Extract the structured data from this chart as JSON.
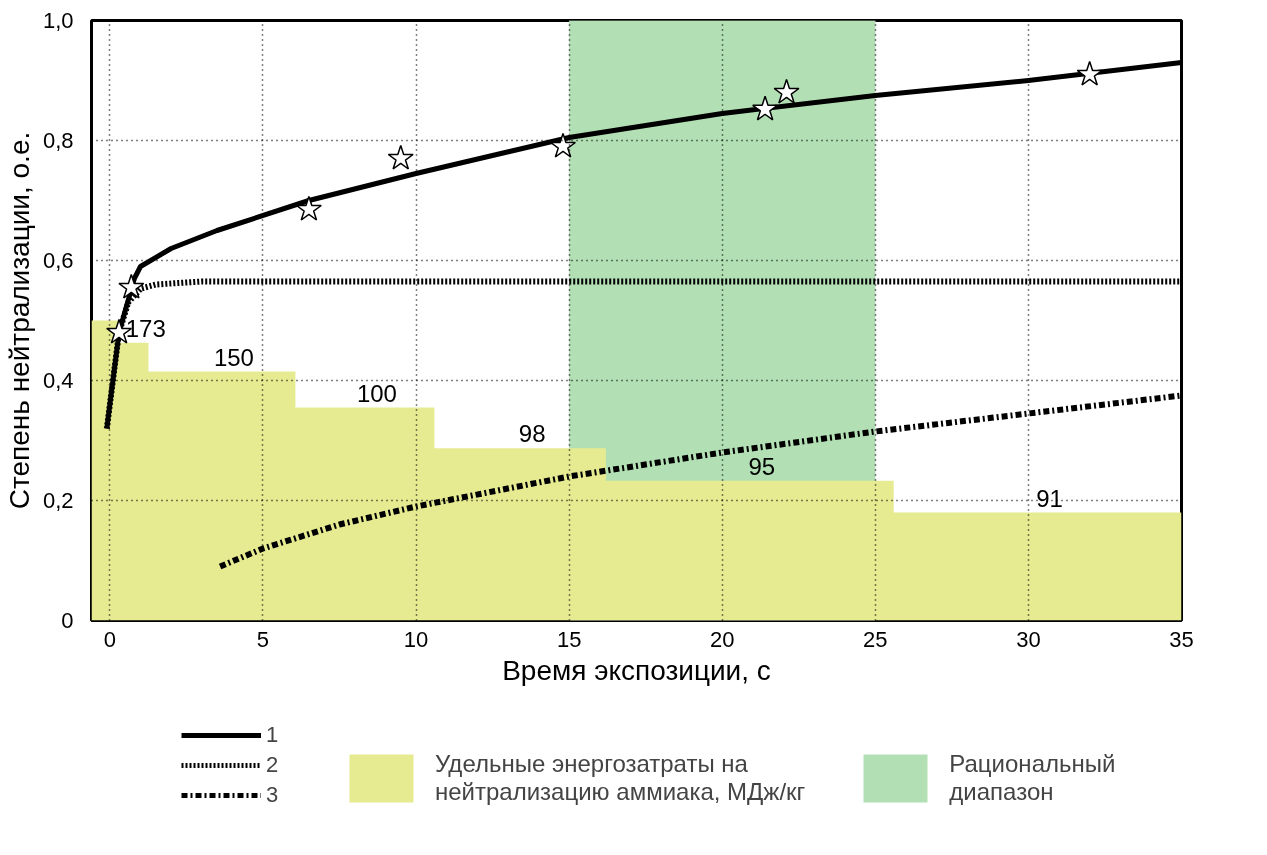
{
  "chart_data": {
    "type": "line",
    "xlabel": "Время экспозиции, с",
    "ylabel": "Степень нейтрализации, о.е.",
    "xlim": [
      -0.6,
      35
    ],
    "ylim": [
      0,
      1
    ],
    "xticks": [
      0,
      5,
      10,
      15,
      20,
      25,
      30,
      35
    ],
    "yticks": [
      0,
      {
        "value": 0.2,
        "label": "0,2"
      },
      {
        "value": 0.4,
        "label": "0,4"
      },
      {
        "value": 0.6,
        "label": "0,6"
      },
      {
        "value": 0.8,
        "label": "0,8"
      },
      {
        "value": 1,
        "label": "1,0"
      }
    ],
    "grid": true,
    "legend": "bottom",
    "bands": [
      {
        "axis": "x",
        "from": 15,
        "to": 25,
        "label": "Рациональный диапазон",
        "color": "#b2e0b4"
      }
    ],
    "annotations": [
      {
        "text": "173",
        "x": 0.78,
        "y": 0.463
      },
      {
        "text": "150",
        "x": 3.66,
        "y": 0.415
      },
      {
        "text": "100",
        "x": 8.33,
        "y": 0.355
      },
      {
        "text": "98",
        "x": 13.4,
        "y": 0.287
      },
      {
        "text": "95",
        "x": 20.9,
        "y": 0.233
      },
      {
        "text": "91",
        "x": 30.3,
        "y": 0.18
      }
    ],
    "series": [
      {
        "type": "area",
        "name": "Удельные энергозатраты на нейтрализацию аммиака, МДж/кг",
        "color": "#e6eb91",
        "x": [
          -0.6,
          0.3,
          0.3,
          1.26,
          1.26,
          6.06,
          6.06,
          10.6,
          10.6,
          16.2,
          16.2,
          25.6,
          25.6,
          35
        ],
        "values": [
          0.5,
          0.5,
          0.463,
          0.463,
          0.415,
          0.415,
          0.355,
          0.355,
          0.287,
          0.287,
          0.233,
          0.233,
          0.18,
          0.18
        ]
      },
      {
        "name": "1",
        "color": "#000000",
        "line_style": "solid",
        "x": [
          -0.1,
          0.3,
          0.8,
          1,
          2,
          3.5,
          6.5,
          10,
          15,
          20,
          25,
          30,
          35
        ],
        "values": [
          0.32,
          0.48,
          0.57,
          0.59,
          0.62,
          0.65,
          0.7,
          0.745,
          0.805,
          0.845,
          0.875,
          0.9,
          0.93
        ]
      },
      {
        "name": "2",
        "color": "#000000",
        "line_style": "dotted",
        "x": [
          -0.1,
          0.3,
          0.6,
          1,
          1.5,
          3,
          35
        ],
        "values": [
          0.32,
          0.48,
          0.53,
          0.553,
          0.56,
          0.565,
          0.565
        ]
      },
      {
        "name": "3",
        "color": "#000000",
        "line_style": "dashdot",
        "x": [
          3.6,
          5,
          7.5,
          10,
          15,
          20,
          25,
          30,
          35
        ],
        "values": [
          0.09,
          0.12,
          0.16,
          0.19,
          0.24,
          0.28,
          0.315,
          0.345,
          0.375
        ]
      },
      {
        "type": "scatter",
        "color": "#000000",
        "marker": "star",
        "x": [
          0.3,
          0.7,
          6.5,
          9.5,
          14.8,
          21.4,
          22.1,
          32
        ],
        "values": [
          0.48,
          0.555,
          0.685,
          0.77,
          0.79,
          0.852,
          0.88,
          0.91
        ]
      }
    ]
  }
}
